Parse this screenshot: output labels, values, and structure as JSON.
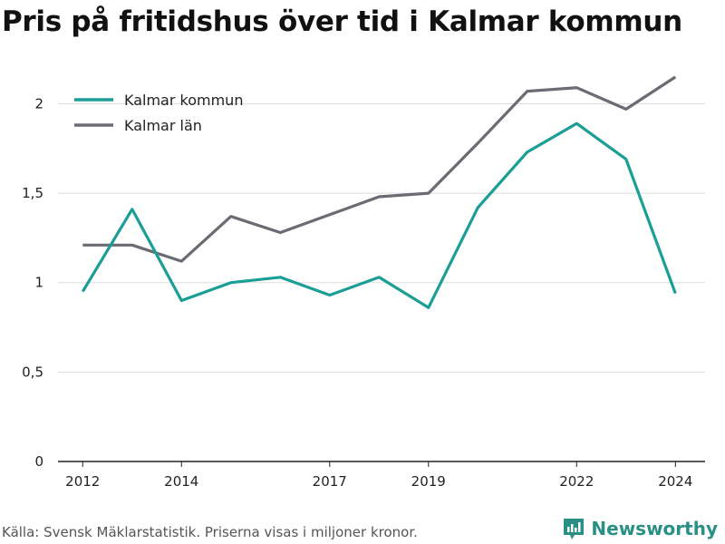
{
  "title": "Pris på fritidshus över tid i Kalmar kommun",
  "footer": "Källa: Svensk Mäklarstatistik. Priserna visas i miljoner kronor.",
  "brand": {
    "name": "Newsworthy",
    "icon": "bar-chart-logo-icon",
    "color": "#2a8f85"
  },
  "chart_data": {
    "type": "line",
    "title": "Pris på fritidshus över tid i Kalmar kommun",
    "xlabel": "",
    "ylabel": "",
    "x": [
      2012,
      2013,
      2014,
      2015,
      2016,
      2017,
      2018,
      2019,
      2020,
      2021,
      2022,
      2023,
      2024
    ],
    "x_ticks": [
      2012,
      2014,
      2017,
      2019,
      2022,
      2024
    ],
    "x_range": [
      2011.5,
      2024.6
    ],
    "y_ticks": [
      0,
      0.5,
      1,
      1.5,
      2
    ],
    "y_tick_labels": [
      "0",
      "0,5",
      "1",
      "1,5",
      "2"
    ],
    "ylim": [
      0,
      2.2
    ],
    "grid": true,
    "legend_position": "top-left",
    "series": [
      {
        "name": "Kalmar kommun",
        "color": "#1a9e96",
        "values": [
          0.95,
          1.41,
          0.9,
          1.0,
          1.03,
          0.93,
          1.03,
          0.86,
          1.42,
          1.73,
          1.89,
          1.69,
          0.94
        ]
      },
      {
        "name": "Kalmar län",
        "color": "#6b6b73",
        "values": [
          1.21,
          1.21,
          1.12,
          1.37,
          1.28,
          1.38,
          1.48,
          1.5,
          1.78,
          2.07,
          2.09,
          1.97,
          2.15
        ]
      }
    ]
  }
}
